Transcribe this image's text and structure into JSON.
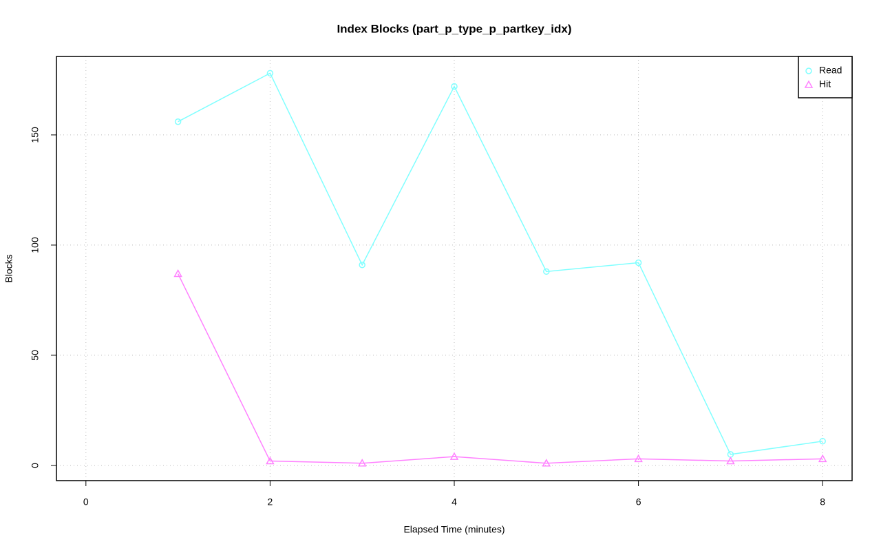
{
  "chart_data": {
    "type": "line",
    "title": "Index Blocks (part_p_type_p_partkey_idx)",
    "x_label": "Elapsed Time (minutes)",
    "y_label": "Blocks",
    "x": [
      1,
      2,
      3,
      4,
      5,
      6,
      7,
      8
    ],
    "series": [
      {
        "name": "Read",
        "color": "#80ffff",
        "marker": "circle",
        "values": [
          156,
          178,
          91,
          172,
          88,
          92,
          5,
          11
        ]
      },
      {
        "name": "Hit",
        "color": "#ff80ff",
        "marker": "triangle",
        "values": [
          87,
          2,
          1,
          4,
          1,
          3,
          2,
          3
        ]
      }
    ],
    "xlim": [
      -0.32,
      8.32
    ],
    "xticks": [
      0,
      2,
      4,
      6,
      8
    ],
    "ylim": [
      -6.9,
      185.6
    ],
    "yticks": [
      0,
      50,
      100,
      150
    ],
    "grid": true,
    "legend": "top-right"
  }
}
